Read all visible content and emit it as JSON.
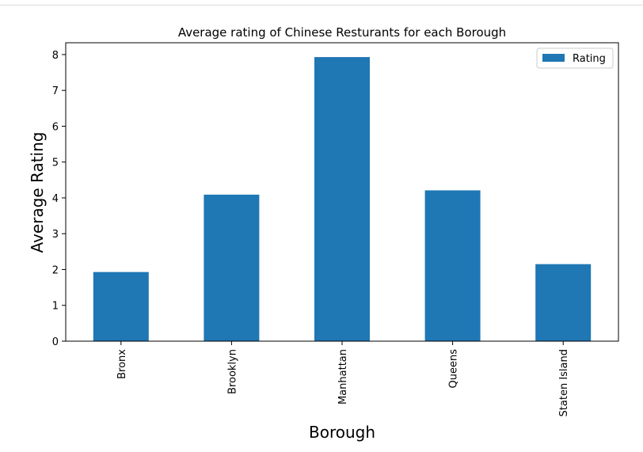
{
  "chart_data": {
    "type": "bar",
    "title": "Average rating of Chinese Resturants for each Borough",
    "xlabel": "Borough",
    "ylabel": "Average Rating",
    "categories": [
      "Bronx",
      "Brooklyn",
      "Manhattan",
      "Queens",
      "Staten Island"
    ],
    "series": [
      {
        "name": "Rating",
        "values": [
          1.93,
          4.09,
          7.93,
          4.21,
          2.15
        ]
      }
    ],
    "ylim": [
      0,
      8.33
    ],
    "yticks": [
      0,
      1,
      2,
      3,
      4,
      5,
      6,
      7,
      8
    ],
    "grid": false,
    "legend": "top-right",
    "colors": {
      "bar": "#1f77b4"
    }
  }
}
